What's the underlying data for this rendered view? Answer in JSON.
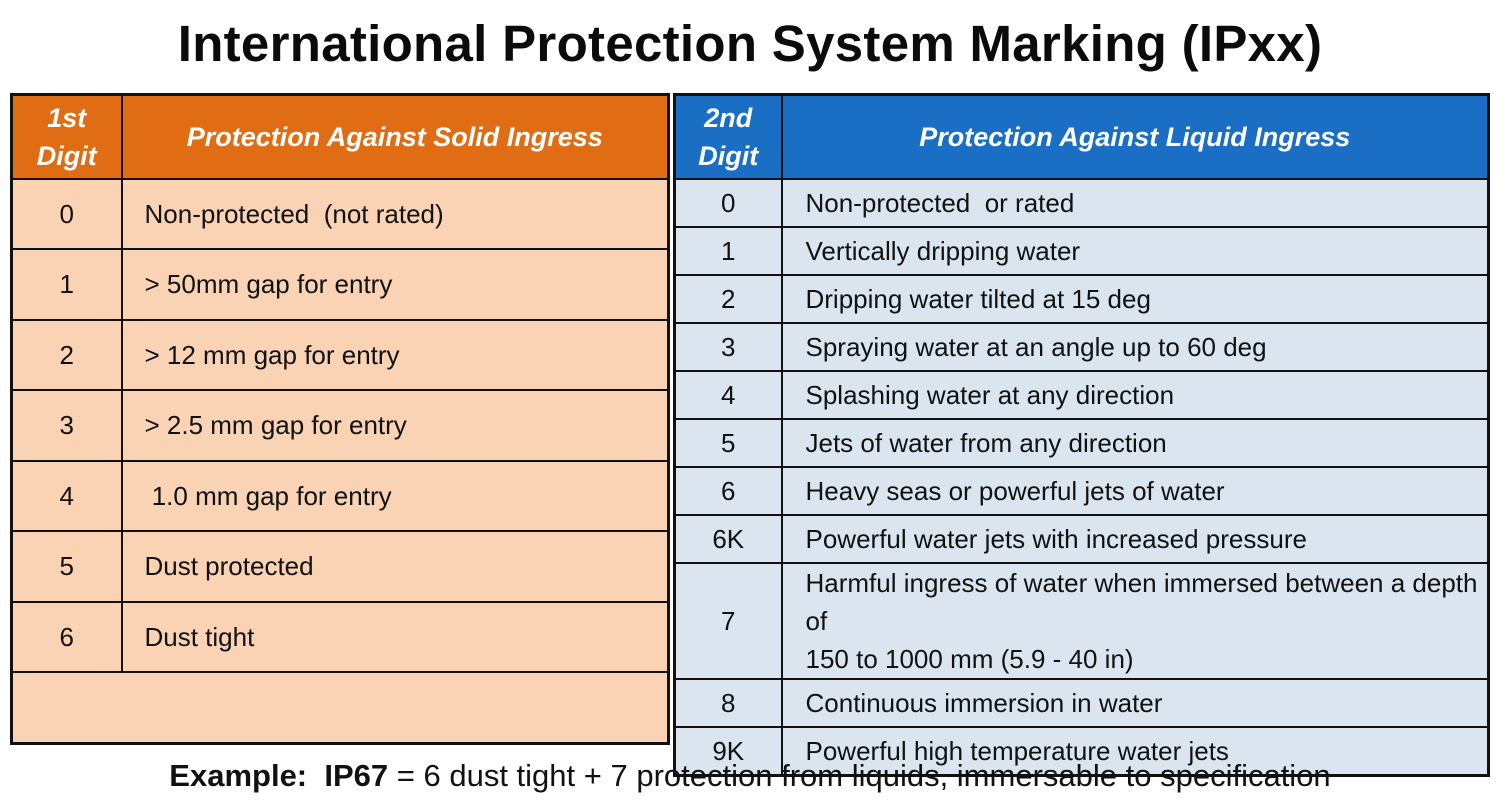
{
  "title": "International Protection System Marking (IPxx)",
  "solid_table": {
    "header_digit": [
      "1st",
      "Digit"
    ],
    "header_desc": "Protection Against Solid Ingress",
    "header_color": "#e06c14",
    "row_color": "#f9d3b4",
    "rows": [
      {
        "digit": "0",
        "desc": "Non-protected  (not rated)"
      },
      {
        "digit": "1",
        "desc": "> 50mm gap for entry"
      },
      {
        "digit": "2",
        "desc": "> 12 mm gap for entry"
      },
      {
        "digit": "3",
        "desc": "> 2.5 mm gap for entry"
      },
      {
        "digit": "4",
        "desc": " 1.0 mm gap for entry"
      },
      {
        "digit": "5",
        "desc": "Dust protected"
      },
      {
        "digit": "6",
        "desc": "Dust tight"
      }
    ]
  },
  "liquid_table": {
    "header_digit": [
      "2nd",
      "Digit"
    ],
    "header_desc": "Protection Against Liquid Ingress",
    "header_color": "#1a6fc4",
    "row_color": "#dbe5f0",
    "rows": [
      {
        "digit": "0",
        "desc": "Non-protected  or rated"
      },
      {
        "digit": "1",
        "desc": "Vertically dripping water"
      },
      {
        "digit": "2",
        "desc": "Dripping water tilted at 15 deg"
      },
      {
        "digit": "3",
        "desc": "Spraying water at an angle up to 60 deg"
      },
      {
        "digit": "4",
        "desc": "Splashing water at any direction"
      },
      {
        "digit": "5",
        "desc": "Jets of water from any direction"
      },
      {
        "digit": "6",
        "desc": "Heavy seas or powerful jets of water"
      },
      {
        "digit": "6K",
        "desc": "Powerful water jets with increased pressure"
      },
      {
        "digit": "7",
        "desc_lines": [
          "Harmful ingress of water when immersed between a depth of",
          "150 to 1000 mm (5.9 - 40 in)"
        ]
      },
      {
        "digit": "8",
        "desc": "Continuous immersion in water"
      },
      {
        "digit": "9K",
        "desc": "Powerful high temperature water jets"
      }
    ]
  },
  "example": {
    "label": "Example:",
    "code": "IP67",
    "text": " = 6 dust tight + 7 protection from liquids, immersable to specification"
  }
}
